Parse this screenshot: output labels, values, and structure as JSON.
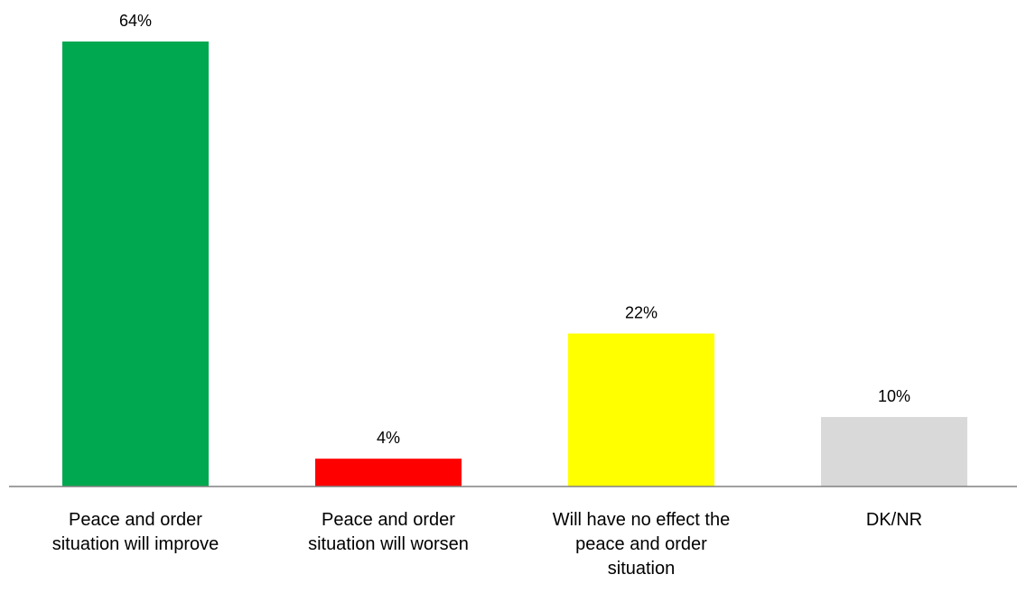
{
  "chart_data": {
    "type": "bar",
    "categories": [
      "Peace and order\nsituation will improve",
      "Peace and order\nsituation will worsen",
      "Will have no effect the\npeace and order\nsituation",
      "DK/NR"
    ],
    "values": [
      64,
      4,
      22,
      10
    ],
    "value_labels": [
      "64%",
      "4%",
      "22%",
      "10%"
    ],
    "colors": [
      "#00A84F",
      "#FF0000",
      "#FFFF00",
      "#D9D9D9"
    ],
    "axis_color": "#808080",
    "ylim": [
      0,
      64
    ],
    "title": "",
    "xlabel": "",
    "ylabel": "",
    "grid": false,
    "legend": "none"
  }
}
